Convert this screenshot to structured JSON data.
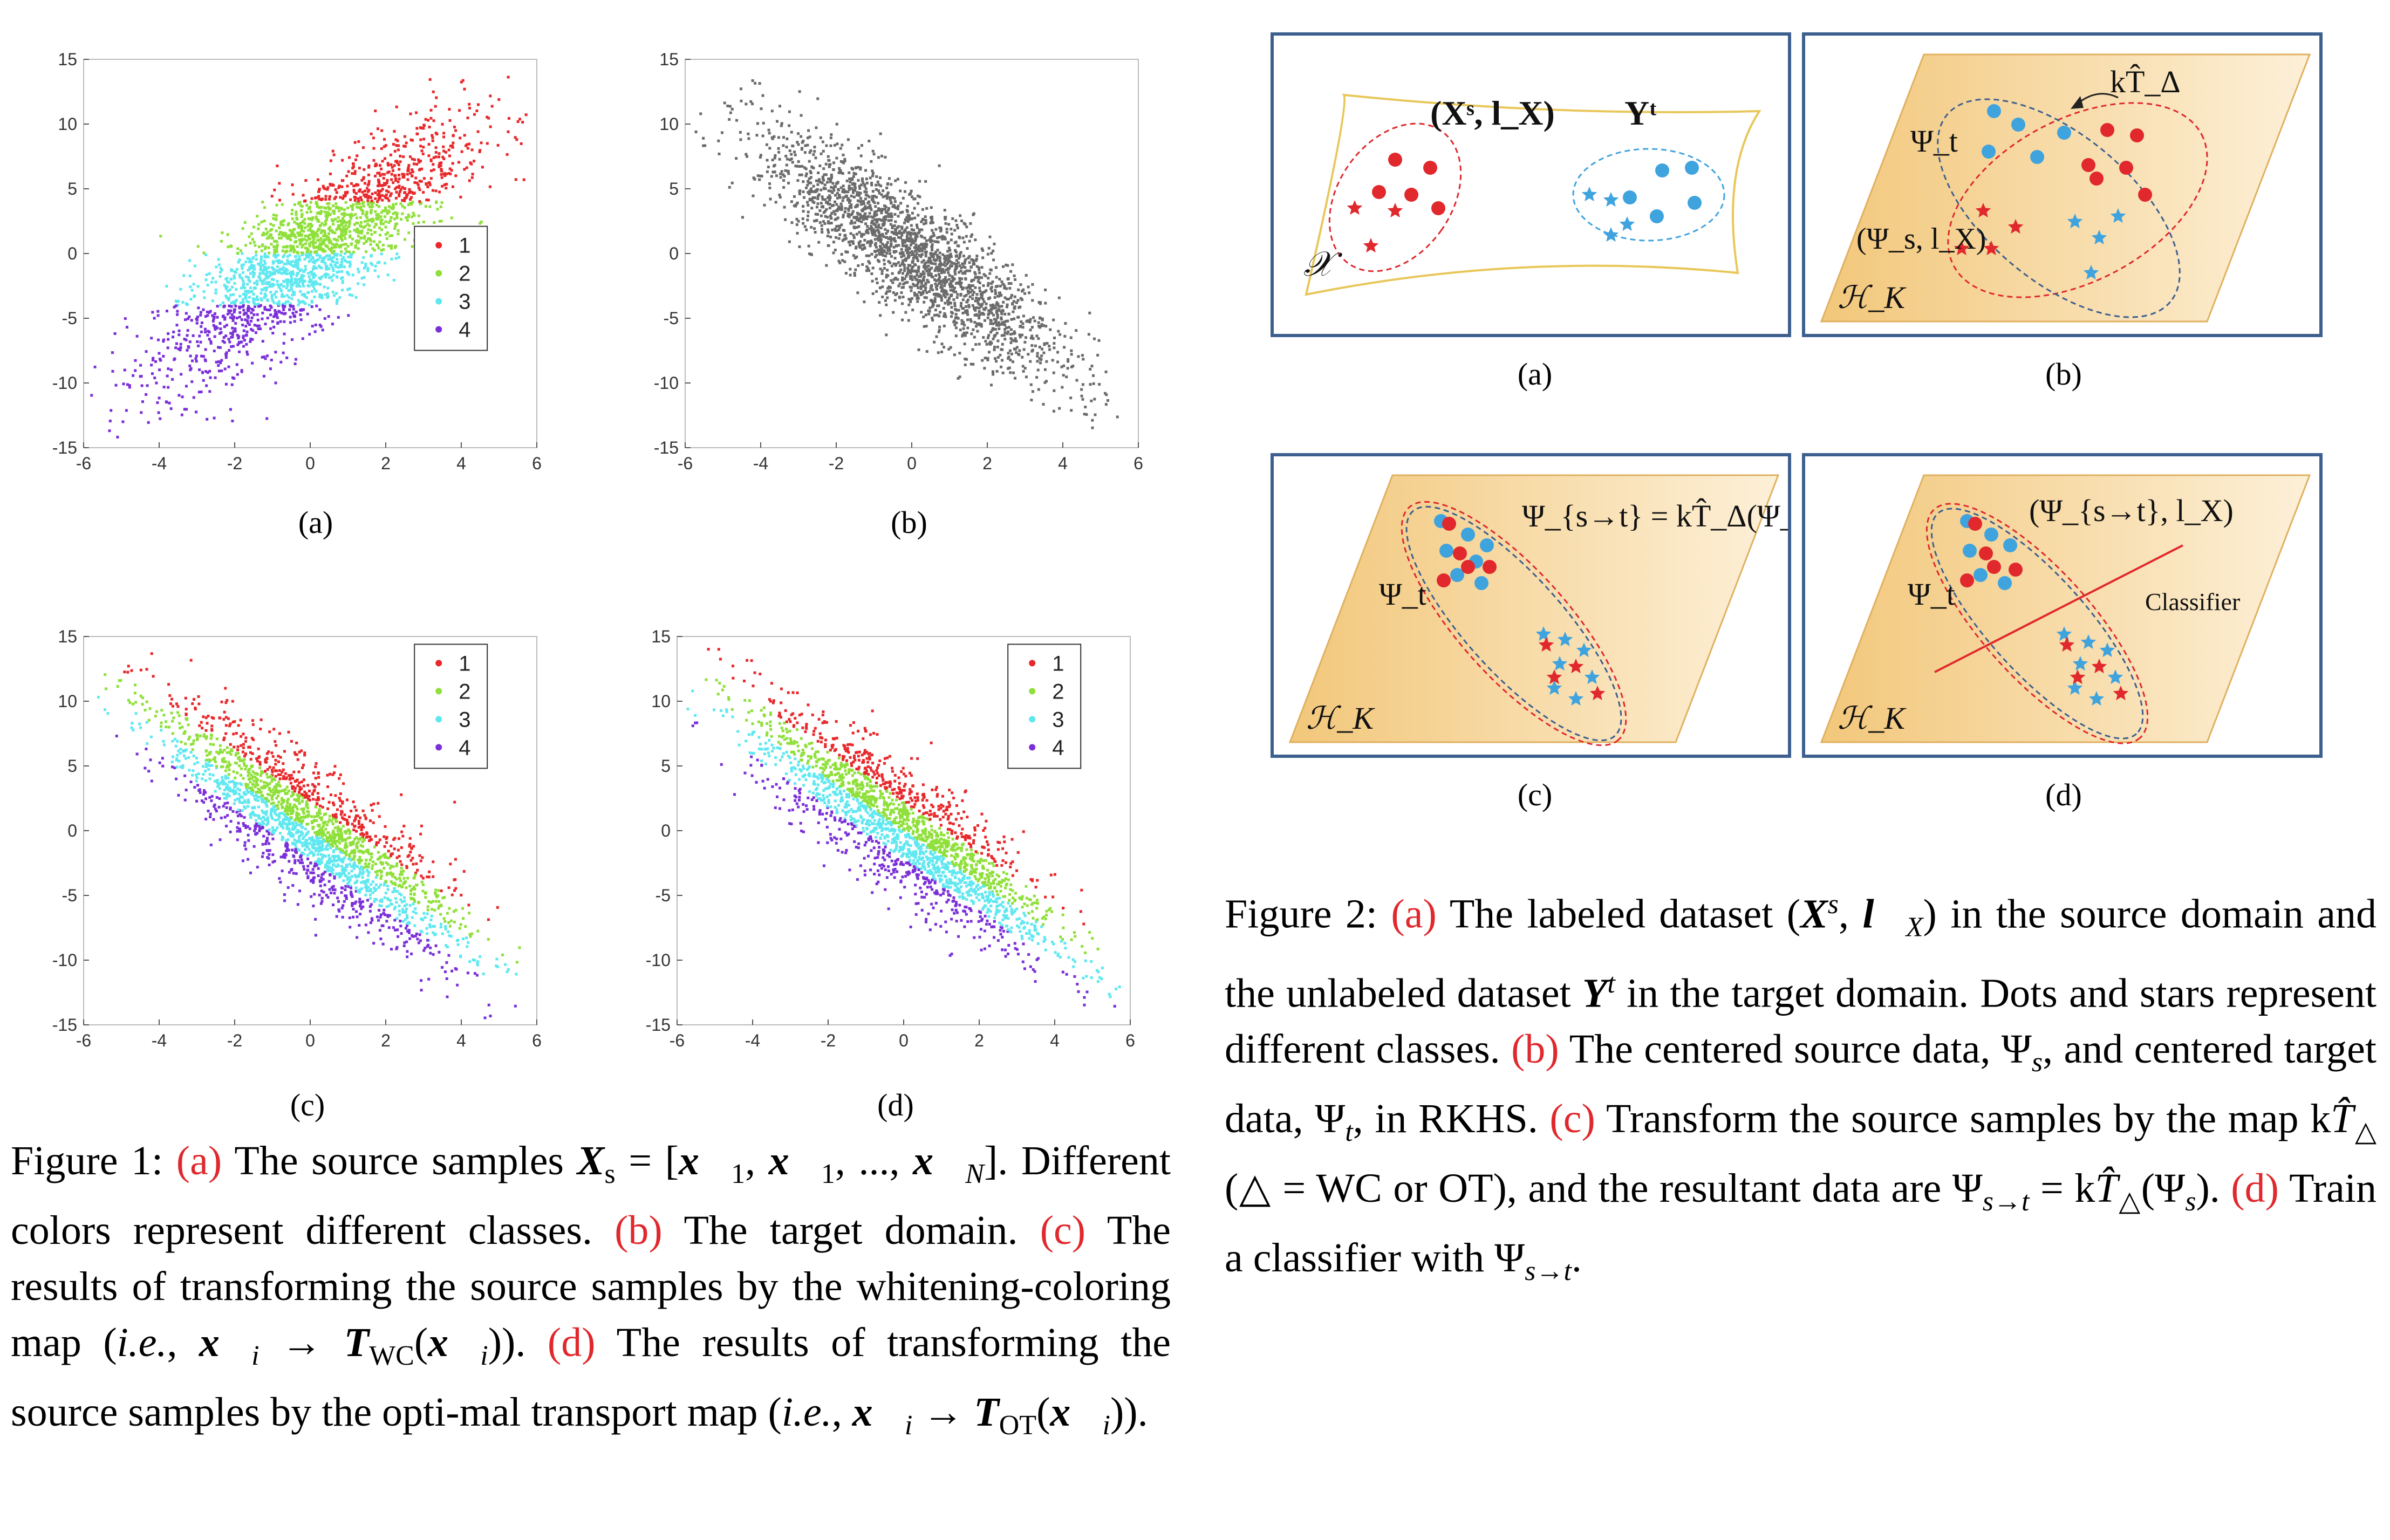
{
  "figure1": {
    "panels": [
      {
        "id": "a",
        "label": "(a)",
        "legend": true,
        "kind": "source"
      },
      {
        "id": "b",
        "label": "(b)",
        "legend": false,
        "kind": "target"
      },
      {
        "id": "c",
        "label": "(c)",
        "legend": true,
        "kind": "wc"
      },
      {
        "id": "d",
        "label": "(d)",
        "legend": true,
        "kind": "ot"
      }
    ],
    "legend_labels": [
      "1",
      "2",
      "3",
      "4"
    ],
    "caption": {
      "prefix": "Figure 1: ",
      "a": "(a)",
      "t1": " The source samples ",
      "X_s": "X",
      "X_s_sub": "s",
      "t1b": " = [x",
      "t1c": "1",
      ", ": ", ",
      "full": "The source samples",
      "seg": [
        {
          "t": "Figure 1: ",
          "c": "n"
        },
        {
          "t": "(a)",
          "c": "r"
        },
        {
          "t": " The source samples ",
          "c": "n"
        },
        {
          "t": "X",
          "c": "b"
        },
        {
          "t": "s",
          "c": "sub"
        },
        {
          "t": " = [",
          "c": "n"
        },
        {
          "t": "x⃗",
          "c": "b"
        },
        {
          "t": "1",
          "c": "sub"
        },
        {
          "t": ", ",
          "c": "n"
        },
        {
          "t": "x⃗",
          "c": "b"
        },
        {
          "t": "1",
          "c": "sub"
        },
        {
          "t": ", ..., ",
          "c": "n"
        },
        {
          "t": "x⃗",
          "c": "b"
        },
        {
          "t": "N",
          "c": "subi"
        },
        {
          "t": "].",
          "c": "n"
        },
        {
          "t": " Different colors represent different classes. ",
          "c": "n"
        },
        {
          "t": "(b)",
          "c": "r"
        },
        {
          "t": " The target domain. ",
          "c": "n"
        },
        {
          "t": "(c)",
          "c": "r"
        },
        {
          "t": " The results of transforming the source samples by the whitening-coloring map (",
          "c": "n"
        },
        {
          "t": "i.e.",
          "c": "i"
        },
        {
          "t": ", ",
          "c": "n"
        },
        {
          "t": "x⃗",
          "c": "b"
        },
        {
          "t": "i",
          "c": "subi"
        },
        {
          "t": " → ",
          "c": "n"
        },
        {
          "t": "T",
          "c": "b"
        },
        {
          "t": "WC",
          "c": "sub"
        },
        {
          "t": "(",
          "c": "n"
        },
        {
          "t": "x⃗",
          "c": "b"
        },
        {
          "t": "i",
          "c": "subi"
        },
        {
          "t": ")). ",
          "c": "n"
        },
        {
          "t": "(d)",
          "c": "r"
        },
        {
          "t": " The results of transforming the source samples by the opti-mal transport map (",
          "c": "n"
        },
        {
          "t": "i.e.",
          "c": "i"
        },
        {
          "t": ", ",
          "c": "n"
        },
        {
          "t": "x⃗",
          "c": "b"
        },
        {
          "t": "i",
          "c": "subi"
        },
        {
          "t": " → ",
          "c": "n"
        },
        {
          "t": "T",
          "c": "b"
        },
        {
          "t": "OT",
          "c": "sub"
        },
        {
          "t": "(",
          "c": "n"
        },
        {
          "t": "x⃗",
          "c": "b"
        },
        {
          "t": "i",
          "c": "subi"
        },
        {
          "t": ")).",
          "c": "n"
        }
      ]
    }
  },
  "figure2": {
    "panels": [
      {
        "id": "a",
        "label": "(a)",
        "space": "𝒳",
        "source_label": "(Xˢ, l_X)",
        "target_label": "Yᵗ"
      },
      {
        "id": "b",
        "label": "(b)",
        "space": "ℋ_K",
        "psi_t": "Ψ_t",
        "psi_s": "(Ψ_s, l_X)",
        "map": "kT̂_Δ"
      },
      {
        "id": "c",
        "label": "(c)",
        "space": "ℋ_K",
        "psi_t": "Ψ_t",
        "eq": "Ψ_{s→t} = kT̂_Δ(Ψ_s)"
      },
      {
        "id": "d",
        "label": "(d)",
        "space": "ℋ_K",
        "psi_t": "Ψ_t",
        "pair": "(Ψ_{s→t}, l_X)",
        "classifier": "Classifier"
      }
    ],
    "caption": {
      "seg": [
        {
          "t": "Figure 2: ",
          "c": "n"
        },
        {
          "t": "(a)",
          "c": "r"
        },
        {
          "t": " The labeled dataset (",
          "c": "n"
        },
        {
          "t": "X",
          "c": "b"
        },
        {
          "t": "s",
          "c": "supi"
        },
        {
          "t": ", ",
          "c": "n"
        },
        {
          "t": "l⃗",
          "c": "b"
        },
        {
          "t": "X",
          "c": "subi"
        },
        {
          "t": ") in the source domain and the unlabeled dataset ",
          "c": "n"
        },
        {
          "t": "Y",
          "c": "b"
        },
        {
          "t": "t",
          "c": "supi"
        },
        {
          "t": " in the target domain. Dots and stars represent different classes. ",
          "c": "n"
        },
        {
          "t": "(b)",
          "c": "r"
        },
        {
          "t": " The centered source data, Ψ",
          "c": "n"
        },
        {
          "t": "s",
          "c": "subi"
        },
        {
          "t": ", and centered target data, Ψ",
          "c": "n"
        },
        {
          "t": "t",
          "c": "subi"
        },
        {
          "t": ", in RKHS. ",
          "c": "n"
        },
        {
          "t": "(c)",
          "c": "r"
        },
        {
          "t": " Transform the source samples by the map k",
          "c": "n"
        },
        {
          "t": "T̂",
          "c": "i"
        },
        {
          "t": "△",
          "c": "sub"
        },
        {
          "t": " (△ = WC or OT), and the resultant data are Ψ",
          "c": "n"
        },
        {
          "t": "s→t",
          "c": "subi"
        },
        {
          "t": " = k",
          "c": "n"
        },
        {
          "t": "T̂",
          "c": "i"
        },
        {
          "t": "△",
          "c": "sub"
        },
        {
          "t": "(Ψ",
          "c": "n"
        },
        {
          "t": "s",
          "c": "subi"
        },
        {
          "t": "). ",
          "c": "n"
        },
        {
          "t": "(d)",
          "c": "r"
        },
        {
          "t": " Train a classifier with Ψ",
          "c": "n"
        },
        {
          "t": "s→t",
          "c": "subi"
        },
        {
          "t": ".",
          "c": "n"
        }
      ]
    }
  },
  "axes": {
    "xlim": [
      -6,
      6
    ],
    "ylim": [
      -15,
      15
    ],
    "xticks": [
      "-6",
      "-4",
      "-2",
      "0",
      "2",
      "4",
      "6"
    ],
    "yticks": [
      "15",
      "10",
      "5",
      "0",
      "-5",
      "-10",
      "-15"
    ]
  },
  "colors": {
    "c1": "#e8282b",
    "c2": "#8fe03a",
    "c3": "#5fe8f0",
    "c4": "#7a2fd8",
    "gray": "#6b6b6b",
    "ref": "#e0282d",
    "border": "#3d5f8e",
    "dot_red": "#e0282d",
    "dot_blue": "#3fa3de"
  }
}
